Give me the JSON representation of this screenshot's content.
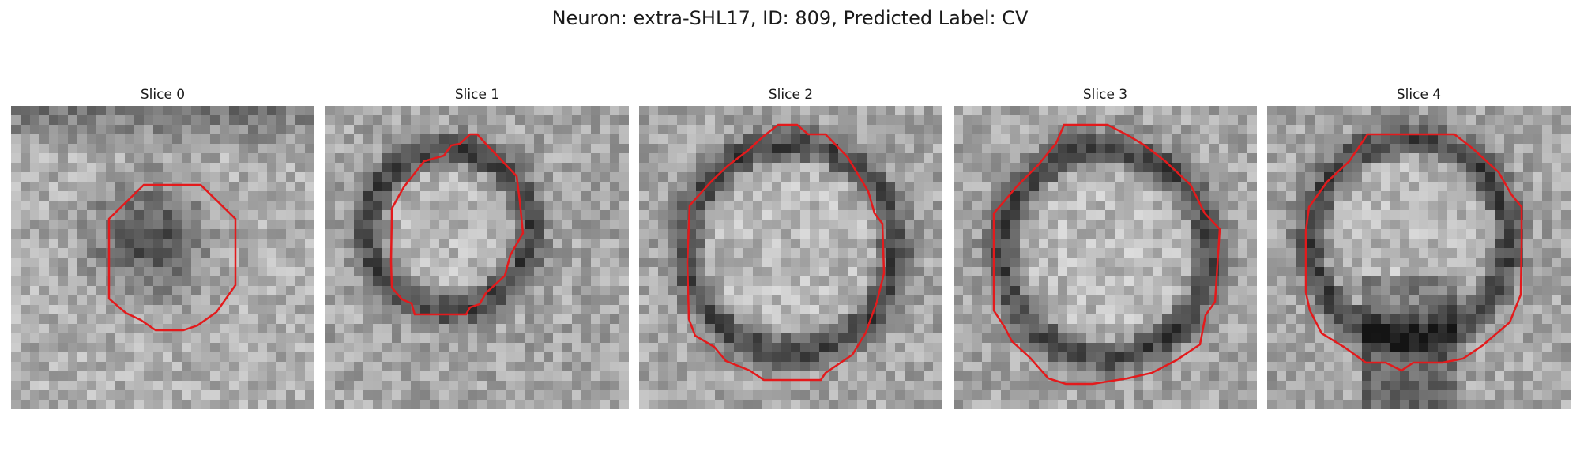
{
  "figure": {
    "suptitle": "Neuron: extra-SHL17, ID: 809, Predicted Label: CV"
  },
  "panels": [
    {
      "title": "Slice 0"
    },
    {
      "title": "Slice 1"
    },
    {
      "title": "Slice 2"
    },
    {
      "title": "Slice 3"
    },
    {
      "title": "Slice 4"
    }
  ],
  "colors": {
    "outline": "#e31a1c",
    "colormap": "grayscale"
  }
}
